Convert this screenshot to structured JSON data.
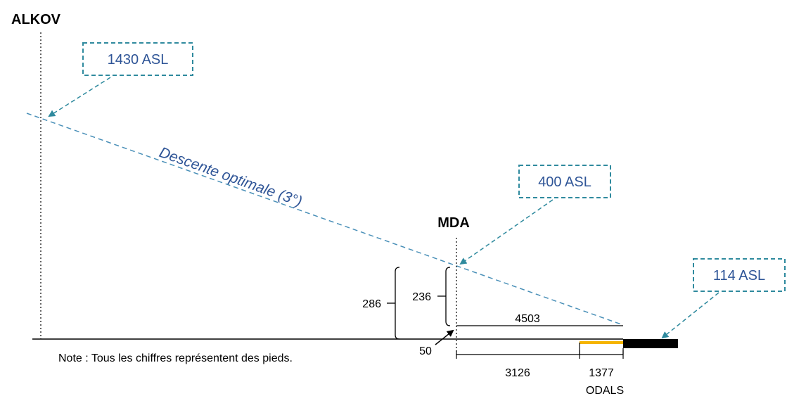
{
  "labels": {
    "alkov": "ALKOV",
    "mda": "MDA",
    "slope": "Descente optimale (3°)",
    "note": "Note : Tous les chiffres représentent des pieds."
  },
  "callouts": {
    "alkov_alt": "1430 ASL",
    "mda_alt": "400 ASL",
    "threshold_alt": "114 ASL"
  },
  "dimensions": {
    "total_height": "286",
    "mda_height": "236",
    "distance_to_threshold": "4503",
    "offset": "50",
    "segment_3126": "3126",
    "segment_1377": "1377",
    "odals": "ODALS"
  },
  "colors": {
    "callout": "#2F8A9E",
    "slope": "#4A90B8",
    "text_blue": "#2F5597",
    "odals": "#F5B400",
    "runway": "#000000"
  }
}
